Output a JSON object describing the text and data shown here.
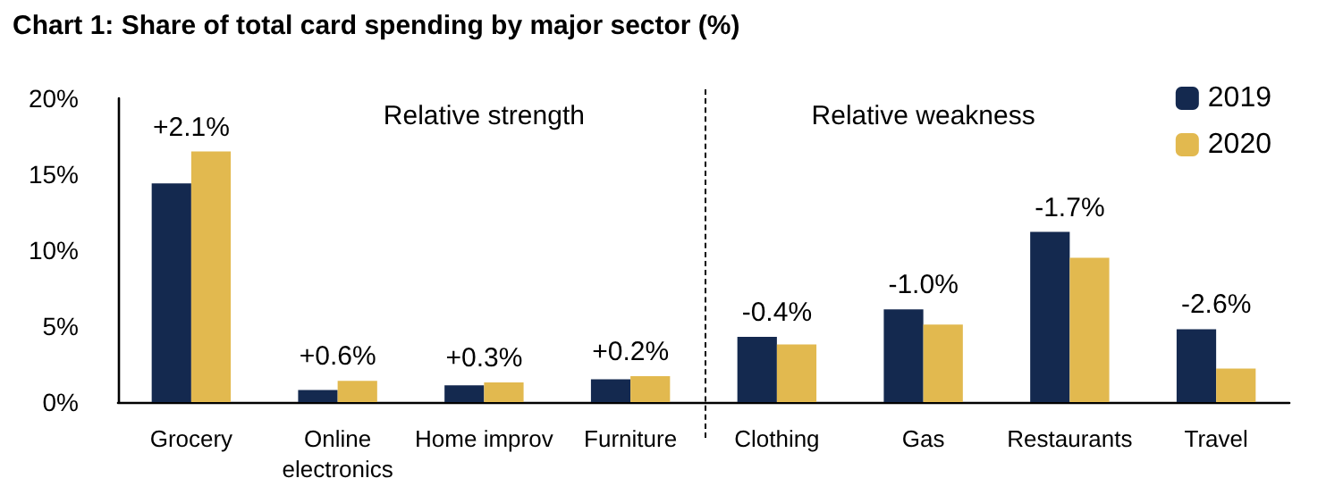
{
  "chart_data": {
    "type": "bar",
    "title": "Chart 1: Share of total card spending by major sector (%)",
    "categories": [
      "Grocery",
      "Online\nelectronics",
      "Home improv",
      "Furniture",
      "Clothing",
      "Gas",
      "Restaurants",
      "Travel"
    ],
    "series": [
      {
        "name": "2019",
        "color": "#14294f",
        "values": [
          14.4,
          0.8,
          1.1,
          1.5,
          4.3,
          6.1,
          11.2,
          4.8
        ]
      },
      {
        "name": "2020",
        "color": "#e2b94f",
        "values": [
          16.5,
          1.4,
          1.3,
          1.7,
          3.8,
          5.1,
          9.5,
          2.2
        ]
      }
    ],
    "ylim": [
      0,
      20
    ],
    "yticks": [
      {
        "value": 0,
        "label": "0%"
      },
      {
        "value": 5,
        "label": "5%"
      },
      {
        "value": 10,
        "label": "10%"
      },
      {
        "value": 15,
        "label": "15%"
      },
      {
        "value": 20,
        "label": "20%"
      }
    ],
    "grid": false,
    "legend": "top right",
    "annotations": [
      "Relative strength",
      "Relative weakness",
      {
        "text": "+2.1%",
        "x": "Grocery",
        "y": 16.5
      },
      {
        "text": "+0.6%",
        "x": "Online\nelectronics",
        "y": 1.4
      },
      {
        "text": "+0.3%",
        "x": "Home improv",
        "y": 1.3
      },
      {
        "text": "+0.2%",
        "x": "Furniture",
        "y": 1.7
      },
      {
        "text": "-0.4%",
        "x": "Clothing",
        "y": 4.3
      },
      {
        "text": "-1.0%",
        "x": "Gas",
        "y": 6.1
      },
      {
        "text": "-1.7%",
        "x": "Restaurants",
        "y": 11.2
      },
      {
        "text": "-2.6%",
        "x": "Travel",
        "y": 4.8
      }
    ]
  }
}
